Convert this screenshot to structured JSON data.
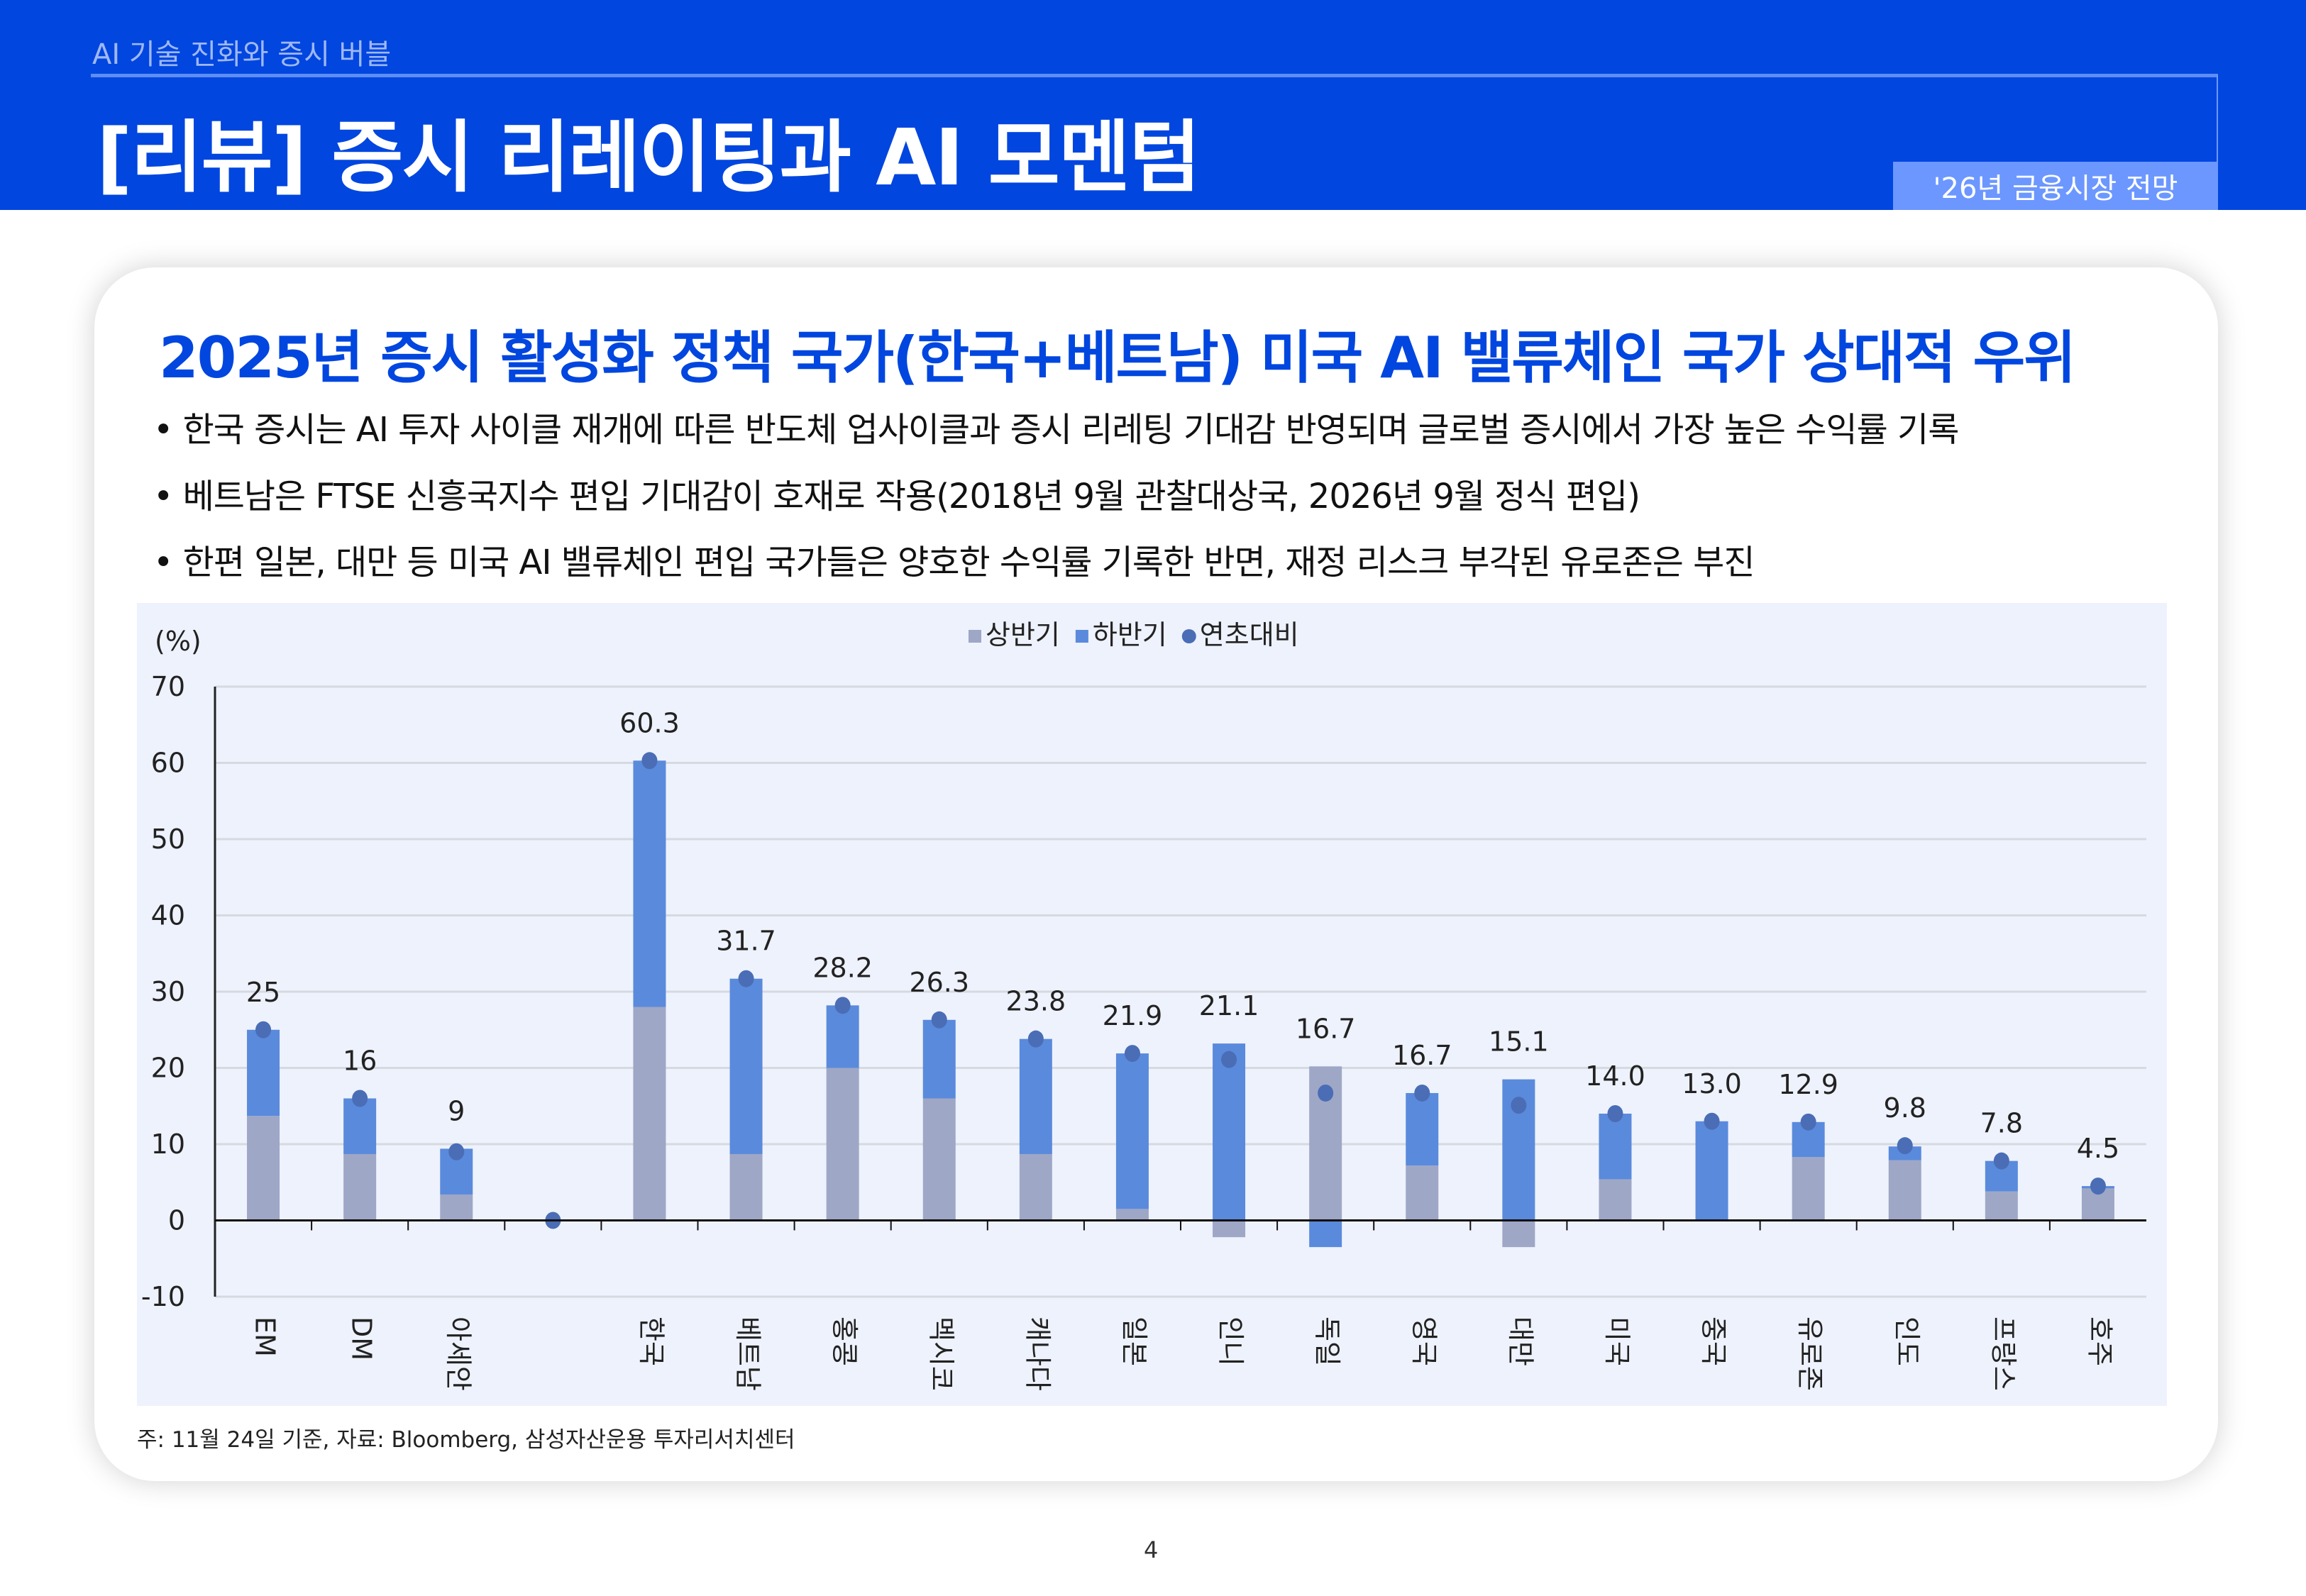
{
  "header": {
    "subtitle": "AI 기술 진화와 증시 버블",
    "title": "[리뷰] 증시 리레이팅과 AI 모멘텀",
    "badge": "'26년 금융시장 전망"
  },
  "card": {
    "heading": "2025년 증시 활성화 정책 국가(한국+베트남) 미국 AI 밸류체인 국가 상대적 우위",
    "bullets": [
      "• 한국 증시는 AI 투자 사이클 재개에 따른 반도체 업사이클과 증시 리레팅 기대감 반영되며 글로벌 증시에서 가장 높은 수익률 기록",
      "• 베트남은 FTSE 신흥국지수 편입 기대감이 호재로 작용(2018년 9월 관찰대상국,  2026년 9월 정식 편입)",
      "• 한편 일본, 대만 등 미국 AI 밸류체인 편입 국가들은 양호한 수익률 기록한 반면, 재정 리스크 부각된 유로존은 부진"
    ],
    "footnote": "주: 11월 24일 기준, 자료: Bloomberg, 삼성자산운용 투자리서치센터"
  },
  "page_number": "4",
  "chart_data": {
    "type": "bar",
    "stacked": true,
    "ylabel": "(%)",
    "ylim": [
      -10,
      70
    ],
    "yticks": [
      "70",
      "60",
      "50",
      "40",
      "30",
      "20",
      "10",
      "0",
      "-10"
    ],
    "grid": true,
    "legend_position": "top-center",
    "categories": [
      "EM",
      "DM",
      "아세안",
      "",
      "한국",
      "베트남",
      "홍콩",
      "멕시코",
      "캐나다",
      "일본",
      "인니",
      "독일",
      "영국",
      "대만",
      "미국",
      "중국",
      "유로존",
      "인도",
      "프랑스",
      "호주"
    ],
    "series": [
      {
        "name": "상반기",
        "color": "#9EA7C6",
        "values": [
          13.7,
          8.7,
          3.4,
          null,
          28.0,
          8.7,
          20.0,
          16.0,
          8.7,
          1.5,
          -2.2,
          20.2,
          7.2,
          -3.5,
          5.4,
          0,
          8.3,
          7.9,
          3.8,
          4.2
        ]
      },
      {
        "name": "하반기",
        "color": "#5A8ADC",
        "values": [
          11.3,
          7.3,
          6.0,
          null,
          32.3,
          23.0,
          8.2,
          10.3,
          15.1,
          20.4,
          23.2,
          -3.5,
          9.5,
          18.5,
          8.6,
          13.0,
          4.6,
          1.8,
          4.0,
          0.3
        ]
      },
      {
        "name": "연초대비",
        "color": "#4A6DB5",
        "type": "dot",
        "values": [
          25,
          16,
          9,
          0,
          60.3,
          31.7,
          28.2,
          26.3,
          23.8,
          21.9,
          21.1,
          16.7,
          16.7,
          15.1,
          14.0,
          13.0,
          12.9,
          9.8,
          7.8,
          4.5
        ]
      }
    ],
    "data_labels": [
      "25",
      "16",
      "9",
      "",
      "60.3",
      "31.7",
      "28.2",
      "26.3",
      "23.8",
      "21.9",
      "21.1",
      "16.7",
      "16.7",
      "15.1",
      "14.0",
      "13.0",
      "12.9",
      "9.8",
      "7.8",
      "4.5"
    ]
  }
}
